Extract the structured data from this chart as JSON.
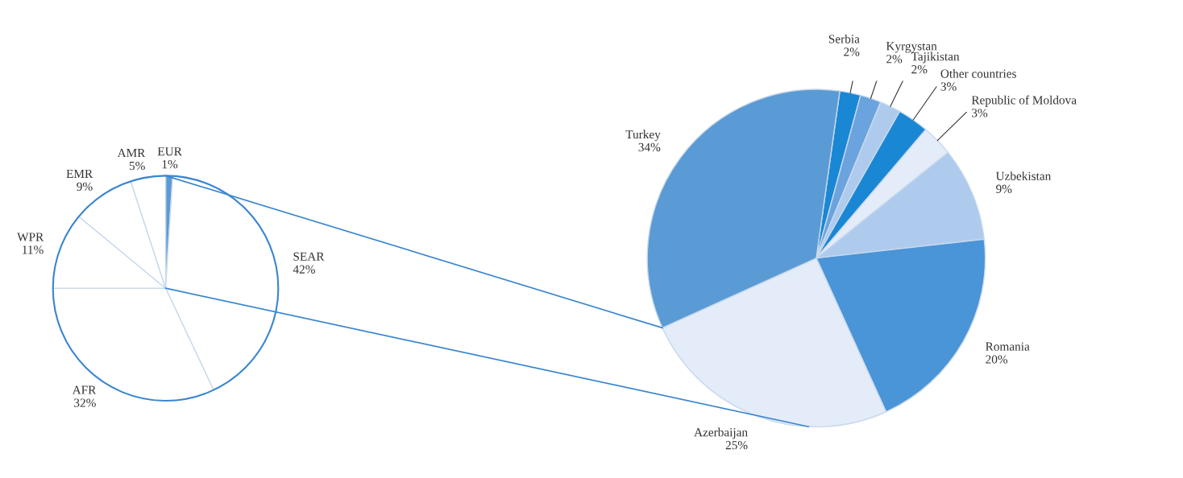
{
  "chart_data": [
    {
      "type": "pie",
      "categories": [
        "EUR",
        "SEAR",
        "AFR",
        "WPR",
        "EMR",
        "AMR"
      ],
      "values": [
        1,
        42,
        32,
        11,
        9,
        5
      ],
      "value_labels": [
        "1%",
        "42%",
        "32%",
        "11%",
        "9%",
        "5%"
      ],
      "colors": [
        "#5b9bd5",
        "#ffffff",
        "#ffffff",
        "#ffffff",
        "#ffffff",
        "#ffffff"
      ]
    },
    {
      "type": "pie",
      "categories": [
        "Serbia",
        "Kyrgystan",
        "Tajikistan",
        "Other countries",
        "Republic of Moldova",
        "Uzbekistan",
        "Romania",
        "Azerbaijan",
        "Turkey"
      ],
      "values": [
        2,
        2,
        2,
        3,
        3,
        9,
        20,
        25,
        34
      ],
      "value_labels": [
        "2%",
        "2%",
        "2%",
        "3%",
        "3%",
        "9%",
        "20%",
        "25%",
        "34%"
      ],
      "colors": [
        "#1a87d4",
        "#6aa3dd",
        "#aecbee",
        "#1a87d4",
        "#e3ecf8",
        "#aecbee",
        "#4a94d8",
        "#e3ecf8",
        "#5b9bd5"
      ]
    }
  ]
}
